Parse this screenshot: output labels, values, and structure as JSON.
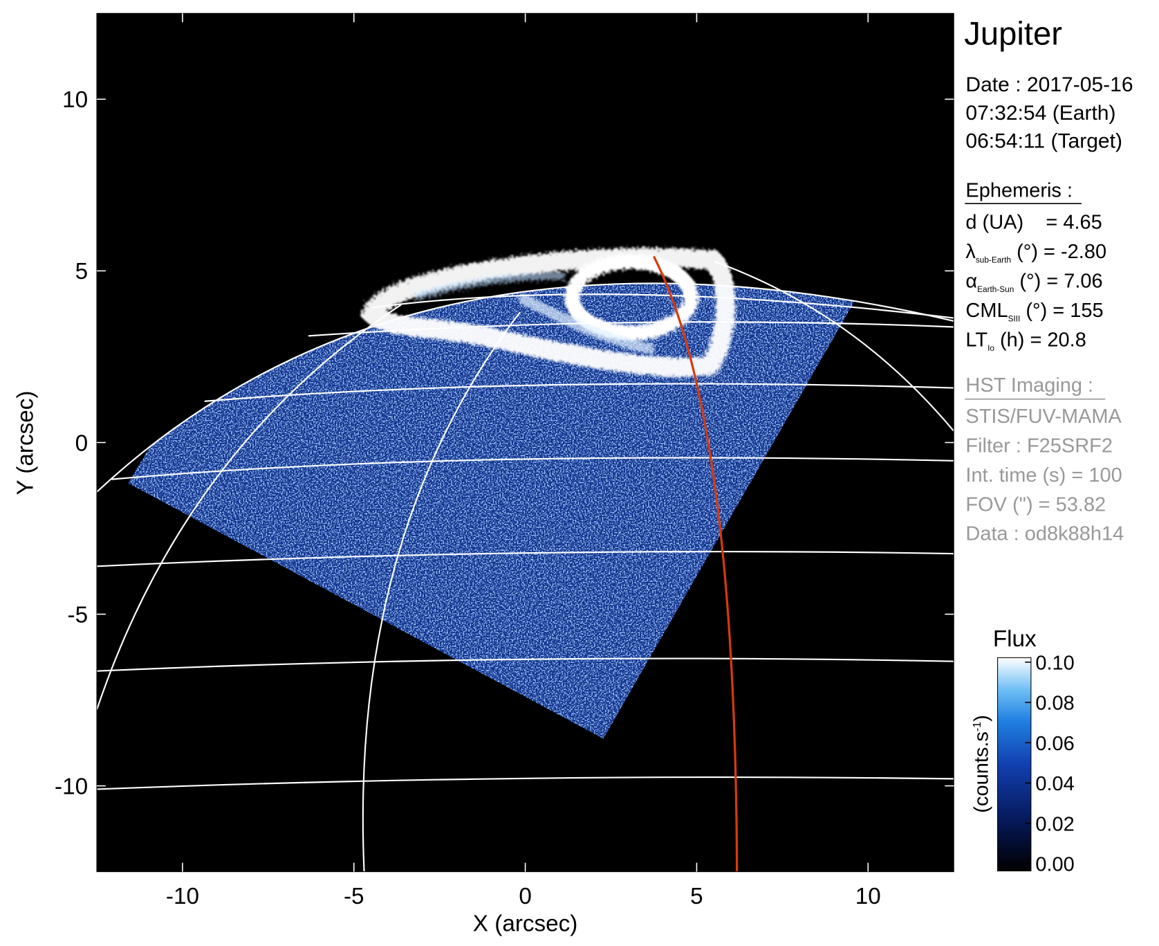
{
  "chart_data": {
    "type": "image",
    "xlabel": "X (arcsec)",
    "ylabel": "Y (arcsec)",
    "xlim": [
      -12.5,
      12.5
    ],
    "ylim": [
      -12.5,
      12.5
    ],
    "xticks": [
      -10,
      -5,
      0,
      5,
      10
    ],
    "yticks": [
      -10,
      -5,
      0,
      5,
      10
    ],
    "colorbar": {
      "title": "Flux",
      "label": "(counts.s",
      "label_sup": "-1",
      "label_end": ")",
      "lim": [
        0,
        0.1
      ],
      "ticks": [
        {
          "value": 0,
          "label": "0.00"
        },
        {
          "value": 0.02,
          "label": "0.02"
        },
        {
          "value": 0.04,
          "label": "0.04"
        },
        {
          "value": 0.06,
          "label": "0.06"
        },
        {
          "value": 0.08,
          "label": "0.08"
        },
        {
          "value": 0.1,
          "label": "0.10"
        }
      ]
    }
  },
  "info": {
    "title": "Jupiter",
    "date": [
      "Date : 2017-05-16",
      "07:32:54 (Earth)",
      "06:54:11 (Target)"
    ],
    "ephemeris_title": "Ephemeris :",
    "ephemeris": [
      {
        "text": "d (UA)    = 4.65"
      },
      {
        "symbol": "λ",
        "sub": "sub-Earth",
        "text": " (°) = -2.80"
      },
      {
        "symbol": "α",
        "sub": "Earth-Sun",
        "text": " (°) = 7.06"
      },
      {
        "symbol": "CML",
        "sub": "SIII",
        "text": " (°) = 155"
      },
      {
        "symbol": "LT",
        "sub": "Io",
        "text": " (h) = 20.8"
      }
    ],
    "hst_title": "HST Imaging :",
    "hst": [
      "STIS/FUV-MAMA",
      "Filter : F25SRF2",
      "Int. time (s) = 100",
      "FOV (\") = 53.82",
      "Data : od8k88h14"
    ]
  }
}
